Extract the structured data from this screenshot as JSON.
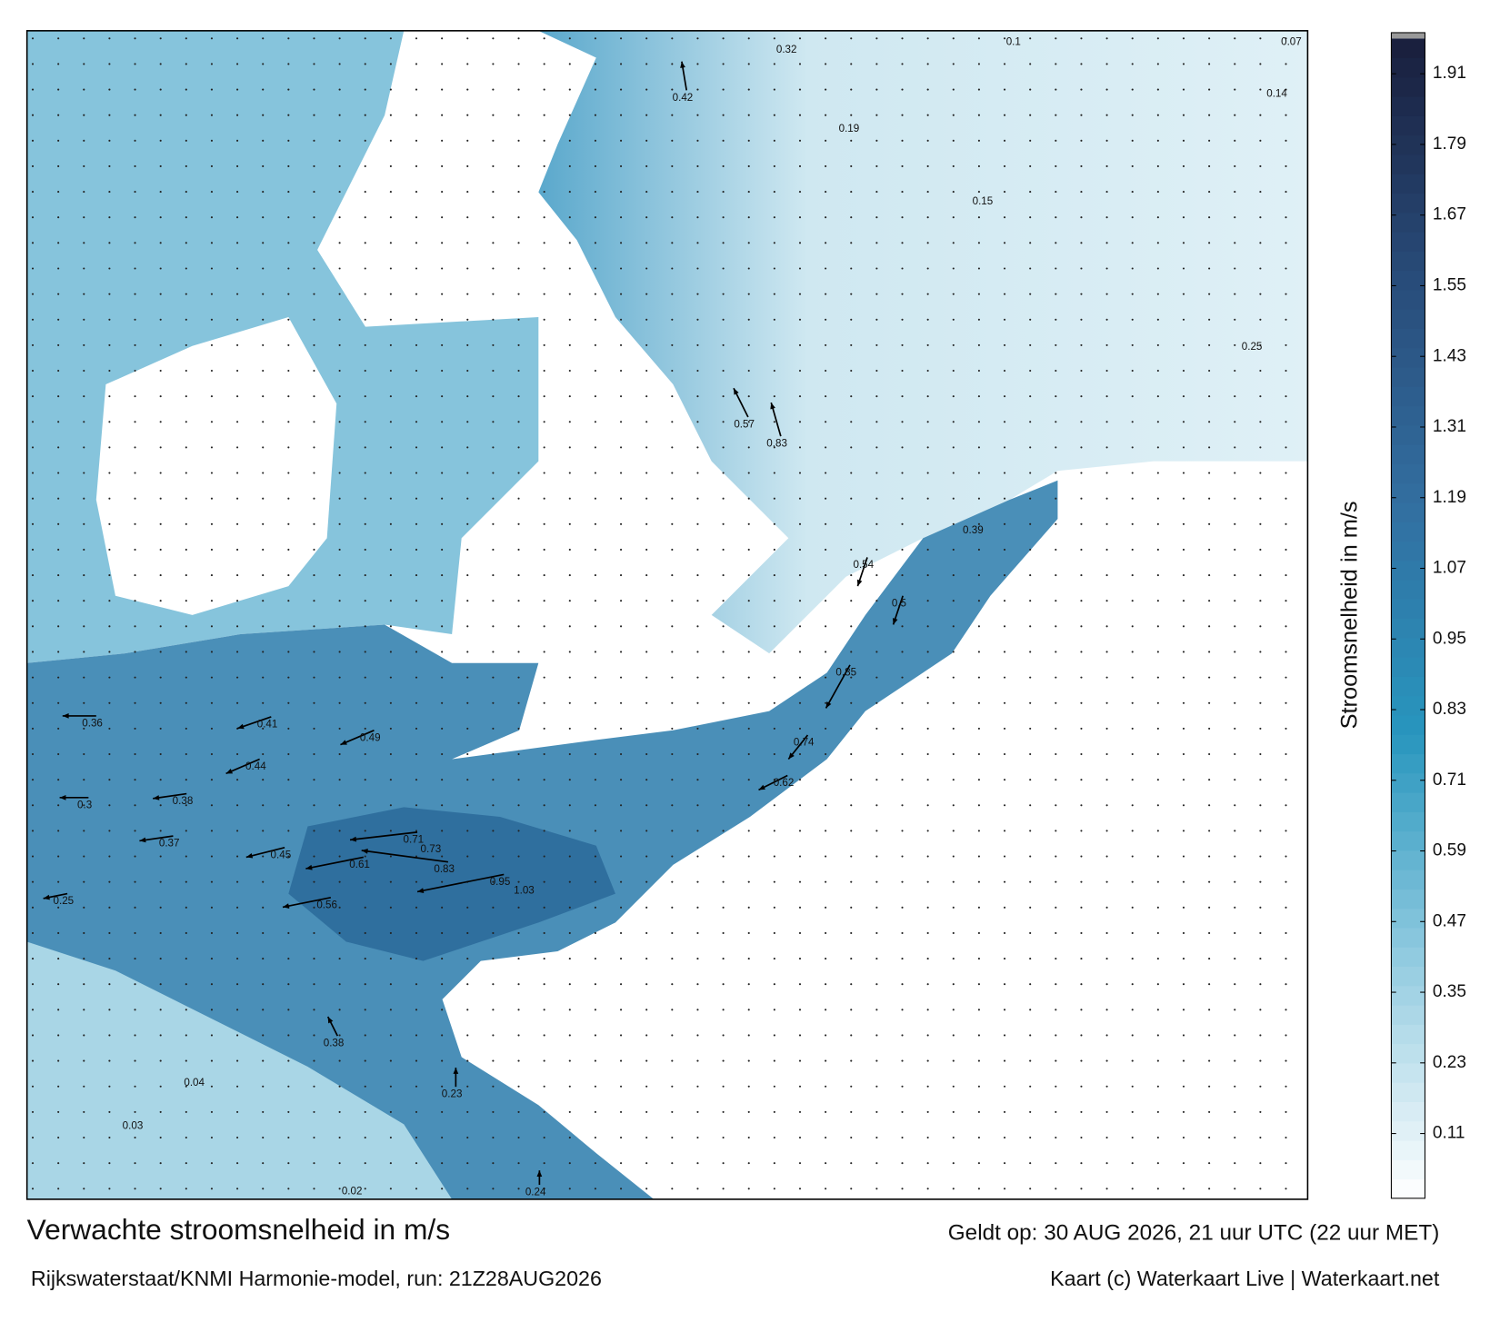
{
  "header": {
    "title": "Verwachte stroomsnelheid in m/s",
    "valid": "Geldt op: 30 AUG 2026, 21 uur UTC (22 uur MET)",
    "source": "Rijkswaterstaat/KNMI Harmonie-model, run: 21Z28AUG2026",
    "credit": "Kaart (c) Waterkaart Live | Waterkaart.net"
  },
  "colorbar": {
    "label": "Stroomsnelheid in m/s",
    "lim": [
      0,
      1.97
    ],
    "ticks": [
      0.11,
      0.23,
      0.35,
      0.47,
      0.59,
      0.71,
      0.83,
      0.95,
      1.07,
      1.19,
      1.31,
      1.43,
      1.55,
      1.67,
      1.79,
      1.91
    ]
  },
  "map": {
    "labels": [
      0.95,
      1.03,
      0.83,
      0.73,
      0.71,
      0.61,
      0.56,
      0.45,
      0.37,
      0.41,
      0.49,
      0.36,
      0.3,
      0.25,
      0.44,
      0.38,
      0.62,
      0.74,
      0.85,
      0.54,
      0.5,
      0.39,
      0.57,
      0.83,
      0.32,
      0.42,
      0.19,
      0.15,
      0.1,
      0.07,
      0.14,
      0.25,
      0.04,
      0.03,
      0.02,
      0.38,
      0.24,
      0.23
    ]
  }
}
